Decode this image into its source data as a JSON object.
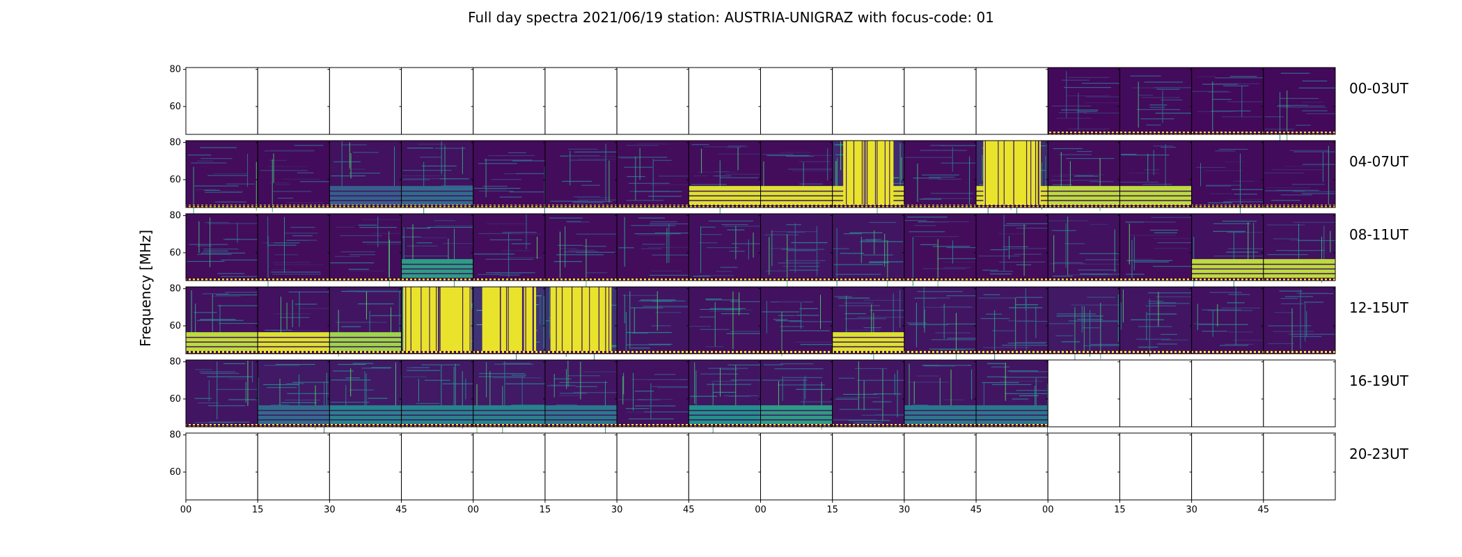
{
  "chart_data": {
    "type": "heatmap",
    "title": "Full day spectra 2021/06/19 station: AUSTRIA-UNIGRAZ with focus-code: 01",
    "ylabel": "Frequency [MHz]",
    "yticks": [
      "80",
      "60"
    ],
    "ylim": [
      45,
      81
    ],
    "xticks": [
      "00",
      "15",
      "30",
      "45",
      "00",
      "15",
      "30",
      "45",
      "00",
      "15",
      "30",
      "45",
      "00",
      "15",
      "30",
      "45"
    ],
    "rows": [
      {
        "label": "00-03UT",
        "panels": [
          {
            "has_data": false
          },
          {
            "has_data": false
          },
          {
            "has_data": false
          },
          {
            "has_data": false
          },
          {
            "has_data": false
          },
          {
            "has_data": false
          },
          {
            "has_data": false
          },
          {
            "has_data": false
          },
          {
            "has_data": false
          },
          {
            "has_data": false
          },
          {
            "has_data": false
          },
          {
            "has_data": false
          },
          {
            "has_data": true,
            "intensity": 0.1
          },
          {
            "has_data": true,
            "intensity": 0.12
          },
          {
            "has_data": true,
            "intensity": 0.1
          },
          {
            "has_data": true,
            "intensity": 0.1
          }
        ]
      },
      {
        "label": "04-07UT",
        "panels": [
          {
            "has_data": true,
            "intensity": 0.15
          },
          {
            "has_data": true,
            "intensity": 0.12
          },
          {
            "has_data": true,
            "intensity": 0.2,
            "low_band": 0.3
          },
          {
            "has_data": true,
            "intensity": 0.2,
            "low_band": 0.35
          },
          {
            "has_data": true,
            "intensity": 0.12
          },
          {
            "has_data": true,
            "intensity": 0.15
          },
          {
            "has_data": true,
            "intensity": 0.15
          },
          {
            "has_data": true,
            "intensity": 0.15,
            "low_band": 0.95
          },
          {
            "has_data": true,
            "intensity": 0.15,
            "low_band": 0.95
          },
          {
            "has_data": true,
            "intensity": 0.5,
            "saturated": 0.7,
            "low_band": 0.95
          },
          {
            "has_data": true,
            "intensity": 0.15
          },
          {
            "has_data": true,
            "intensity": 0.5,
            "saturated": 0.8,
            "low_band": 0.95
          },
          {
            "has_data": true,
            "intensity": 0.15,
            "low_band": 0.9
          },
          {
            "has_data": true,
            "intensity": 0.15,
            "low_band": 0.9
          },
          {
            "has_data": true,
            "intensity": 0.12
          },
          {
            "has_data": true,
            "intensity": 0.12
          }
        ]
      },
      {
        "label": "08-11UT",
        "panels": [
          {
            "has_data": true,
            "intensity": 0.15
          },
          {
            "has_data": true,
            "intensity": 0.15
          },
          {
            "has_data": true,
            "intensity": 0.15
          },
          {
            "has_data": true,
            "intensity": 0.2,
            "low_band": 0.55
          },
          {
            "has_data": true,
            "intensity": 0.15
          },
          {
            "has_data": true,
            "intensity": 0.15
          },
          {
            "has_data": true,
            "intensity": 0.15
          },
          {
            "has_data": true,
            "intensity": 0.18
          },
          {
            "has_data": true,
            "intensity": 0.25
          },
          {
            "has_data": true,
            "intensity": 0.25
          },
          {
            "has_data": true,
            "intensity": 0.15
          },
          {
            "has_data": true,
            "intensity": 0.15
          },
          {
            "has_data": true,
            "intensity": 0.2
          },
          {
            "has_data": true,
            "intensity": 0.15
          },
          {
            "has_data": true,
            "intensity": 0.2,
            "low_band": 0.9
          },
          {
            "has_data": true,
            "intensity": 0.2,
            "low_band": 0.9
          }
        ]
      },
      {
        "label": "12-15UT",
        "panels": [
          {
            "has_data": true,
            "intensity": 0.2,
            "low_band": 0.9
          },
          {
            "has_data": true,
            "intensity": 0.2,
            "low_band": 0.95
          },
          {
            "has_data": true,
            "intensity": 0.25,
            "low_band": 0.85
          },
          {
            "has_data": true,
            "intensity": 0.7,
            "saturated": 0.95
          },
          {
            "has_data": true,
            "intensity": 0.6,
            "saturated": 0.75
          },
          {
            "has_data": true,
            "intensity": 0.6,
            "saturated": 0.85
          },
          {
            "has_data": true,
            "intensity": 0.25
          },
          {
            "has_data": true,
            "intensity": 0.2
          },
          {
            "has_data": true,
            "intensity": 0.2
          },
          {
            "has_data": true,
            "intensity": 0.25,
            "low_band": 0.95
          },
          {
            "has_data": true,
            "intensity": 0.25
          },
          {
            "has_data": true,
            "intensity": 0.25
          },
          {
            "has_data": true,
            "intensity": 0.3
          },
          {
            "has_data": true,
            "intensity": 0.25
          },
          {
            "has_data": true,
            "intensity": 0.2
          },
          {
            "has_data": true,
            "intensity": 0.2
          }
        ]
      },
      {
        "label": "16-19UT",
        "panels": [
          {
            "has_data": true,
            "intensity": 0.25
          },
          {
            "has_data": true,
            "intensity": 0.3,
            "low_band": 0.35
          },
          {
            "has_data": true,
            "intensity": 0.3,
            "low_band": 0.45
          },
          {
            "has_data": true,
            "intensity": 0.3,
            "low_band": 0.45
          },
          {
            "has_data": true,
            "intensity": 0.3,
            "low_band": 0.45
          },
          {
            "has_data": true,
            "intensity": 0.25,
            "low_band": 0.4
          },
          {
            "has_data": true,
            "intensity": 0.2
          },
          {
            "has_data": true,
            "intensity": 0.25,
            "low_band": 0.5
          },
          {
            "has_data": true,
            "intensity": 0.25,
            "low_band": 0.55
          },
          {
            "has_data": true,
            "intensity": 0.25
          },
          {
            "has_data": true,
            "intensity": 0.25,
            "low_band": 0.4
          },
          {
            "has_data": true,
            "intensity": 0.25,
            "low_band": 0.4
          },
          {
            "has_data": false
          },
          {
            "has_data": false
          },
          {
            "has_data": false
          },
          {
            "has_data": false
          }
        ]
      },
      {
        "label": "20-23UT",
        "panels": [
          {
            "has_data": false
          },
          {
            "has_data": false
          },
          {
            "has_data": false
          },
          {
            "has_data": false
          },
          {
            "has_data": false
          },
          {
            "has_data": false
          },
          {
            "has_data": false
          },
          {
            "has_data": false
          },
          {
            "has_data": false
          },
          {
            "has_data": false
          },
          {
            "has_data": false
          },
          {
            "has_data": false
          },
          {
            "has_data": false
          },
          {
            "has_data": false
          },
          {
            "has_data": false
          },
          {
            "has_data": false
          }
        ]
      }
    ],
    "colormap": [
      "#440154",
      "#3b528b",
      "#21918c",
      "#5ec962",
      "#fde725"
    ],
    "grid": false,
    "legend": "none"
  }
}
